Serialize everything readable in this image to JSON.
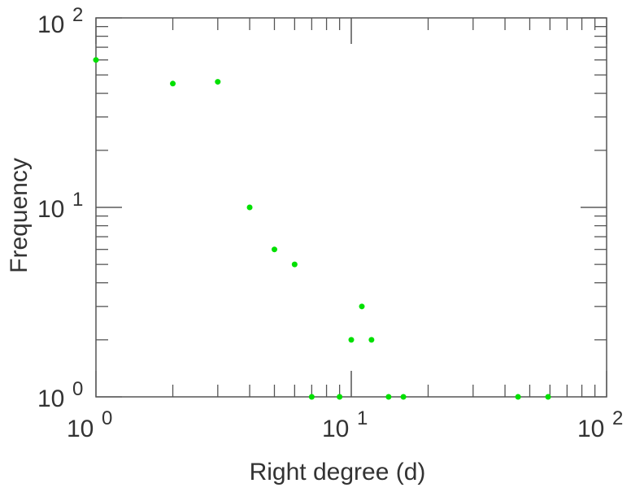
{
  "chart_data": {
    "type": "scatter",
    "title": "",
    "xlabel": "Right degree (d)",
    "ylabel": "Frequency",
    "xscale": "log",
    "yscale": "log",
    "xlim": [
      1,
      100
    ],
    "ylim": [
      1,
      100
    ],
    "grid": false,
    "x_tick_labels": [
      {
        "base": "10",
        "exp": "0"
      },
      {
        "base": "10",
        "exp": "1"
      },
      {
        "base": "10",
        "exp": "2"
      }
    ],
    "y_tick_labels": [
      {
        "base": "10",
        "exp": "0"
      },
      {
        "base": "10",
        "exp": "1"
      },
      {
        "base": "10",
        "exp": "2"
      }
    ],
    "marker_color": "#00e000",
    "points": [
      {
        "x": 1,
        "y": 60
      },
      {
        "x": 2,
        "y": 45
      },
      {
        "x": 3,
        "y": 46
      },
      {
        "x": 4,
        "y": 10
      },
      {
        "x": 5,
        "y": 6
      },
      {
        "x": 6,
        "y": 5
      },
      {
        "x": 7,
        "y": 1
      },
      {
        "x": 9,
        "y": 1
      },
      {
        "x": 10,
        "y": 2
      },
      {
        "x": 11,
        "y": 3
      },
      {
        "x": 12,
        "y": 2
      },
      {
        "x": 14,
        "y": 1
      },
      {
        "x": 16,
        "y": 1
      },
      {
        "x": 45,
        "y": 1
      },
      {
        "x": 59,
        "y": 1
      }
    ]
  }
}
